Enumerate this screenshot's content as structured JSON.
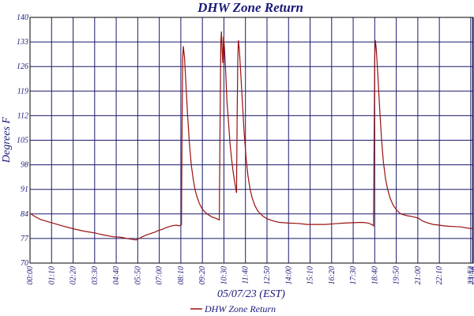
{
  "chart_data": {
    "type": "line",
    "title": "DHW Zone Return",
    "xlabel": "05/07/23 (EST)",
    "ylabel": "Degrees F",
    "ylim": [
      70,
      140
    ],
    "yticks": [
      70,
      77,
      84,
      91,
      98,
      105,
      112,
      119,
      126,
      133,
      140
    ],
    "xlim": [
      0,
      1440
    ],
    "xticks": [
      {
        "m": 0,
        "label": "00:00"
      },
      {
        "m": 70,
        "label": "01:10"
      },
      {
        "m": 140,
        "label": "02:20"
      },
      {
        "m": 210,
        "label": "03:30"
      },
      {
        "m": 280,
        "label": "04:40"
      },
      {
        "m": 350,
        "label": "05:50"
      },
      {
        "m": 420,
        "label": "07:00"
      },
      {
        "m": 490,
        "label": "08:10"
      },
      {
        "m": 560,
        "label": "09:20"
      },
      {
        "m": 630,
        "label": "10:30"
      },
      {
        "m": 700,
        "label": "11:40"
      },
      {
        "m": 770,
        "label": "12:50"
      },
      {
        "m": 840,
        "label": "14:00"
      },
      {
        "m": 910,
        "label": "15:10"
      },
      {
        "m": 980,
        "label": "16:20"
      },
      {
        "m": 1050,
        "label": "17:30"
      },
      {
        "m": 1120,
        "label": "18:40"
      },
      {
        "m": 1190,
        "label": "19:50"
      },
      {
        "m": 1260,
        "label": "21:00"
      },
      {
        "m": 1330,
        "label": "22:10"
      },
      {
        "m": 1432,
        "label": "23:52"
      },
      {
        "m": 1438,
        "label": "23:58"
      }
    ],
    "grid": true,
    "legend": "bottom-center",
    "series": [
      {
        "name": "DHW Zone Return",
        "color": "#9b1010",
        "points": [
          [
            0,
            84.2
          ],
          [
            15,
            83.3
          ],
          [
            35,
            82.4
          ],
          [
            70,
            81.5
          ],
          [
            105,
            80.6
          ],
          [
            140,
            79.8
          ],
          [
            175,
            79.1
          ],
          [
            210,
            78.6
          ],
          [
            240,
            78.0
          ],
          [
            270,
            77.5
          ],
          [
            290,
            77.4
          ],
          [
            300,
            77.3
          ],
          [
            310,
            77.1
          ],
          [
            320,
            76.9
          ],
          [
            330,
            76.8
          ],
          [
            345,
            76.6
          ],
          [
            355,
            77.0
          ],
          [
            365,
            77.5
          ],
          [
            375,
            77.9
          ],
          [
            385,
            78.2
          ],
          [
            395,
            78.5
          ],
          [
            405,
            78.8
          ],
          [
            415,
            79.2
          ],
          [
            430,
            79.6
          ],
          [
            445,
            80.2
          ],
          [
            460,
            80.6
          ],
          [
            475,
            80.8
          ],
          [
            485,
            80.6
          ],
          [
            492,
            80.9
          ],
          [
            494,
            110.0
          ],
          [
            496,
            128.0
          ],
          [
            498,
            131.8
          ],
          [
            502,
            128.5
          ],
          [
            506,
            122.0
          ],
          [
            512,
            112.0
          ],
          [
            518,
            104.0
          ],
          [
            524,
            98.0
          ],
          [
            530,
            94.0
          ],
          [
            536,
            91.0
          ],
          [
            542,
            89.0
          ],
          [
            550,
            87.0
          ],
          [
            560,
            85.3
          ],
          [
            575,
            84.0
          ],
          [
            590,
            83.2
          ],
          [
            605,
            82.7
          ],
          [
            615,
            82.3
          ],
          [
            617,
            105.0
          ],
          [
            620,
            133.0
          ],
          [
            622,
            136.0
          ],
          [
            624,
            131.0
          ],
          [
            626,
            127.0
          ],
          [
            629,
            134.5
          ],
          [
            632,
            131.0
          ],
          [
            636,
            124.0
          ],
          [
            640,
            116.0
          ],
          [
            645,
            110.0
          ],
          [
            650,
            104.0
          ],
          [
            655,
            99.5
          ],
          [
            660,
            96.0
          ],
          [
            665,
            93.0
          ],
          [
            668,
            91.5
          ],
          [
            671,
            90.0
          ],
          [
            673,
            112.0
          ],
          [
            675,
            128.0
          ],
          [
            677,
            133.5
          ],
          [
            680,
            131.0
          ],
          [
            684,
            125.0
          ],
          [
            690,
            116.0
          ],
          [
            696,
            107.0
          ],
          [
            702,
            100.0
          ],
          [
            708,
            95.0
          ],
          [
            715,
            91.0
          ],
          [
            722,
            88.5
          ],
          [
            730,
            86.5
          ],
          [
            740,
            84.8
          ],
          [
            755,
            83.5
          ],
          [
            770,
            82.6
          ],
          [
            790,
            82.0
          ],
          [
            810,
            81.6
          ],
          [
            840,
            81.4
          ],
          [
            870,
            81.3
          ],
          [
            900,
            81.0
          ],
          [
            930,
            81.0
          ],
          [
            960,
            81.0
          ],
          [
            990,
            81.2
          ],
          [
            1020,
            81.4
          ],
          [
            1050,
            81.5
          ],
          [
            1080,
            81.6
          ],
          [
            1100,
            81.4
          ],
          [
            1112,
            80.9
          ],
          [
            1116,
            80.6
          ],
          [
            1118,
            106.0
          ],
          [
            1120,
            128.0
          ],
          [
            1122,
            133.5
          ],
          [
            1125,
            131.0
          ],
          [
            1130,
            124.0
          ],
          [
            1136,
            114.0
          ],
          [
            1142,
            105.5
          ],
          [
            1148,
            99.0
          ],
          [
            1155,
            94.0
          ],
          [
            1162,
            91.0
          ],
          [
            1170,
            88.5
          ],
          [
            1180,
            86.5
          ],
          [
            1192,
            85.0
          ],
          [
            1205,
            84.0
          ],
          [
            1225,
            83.5
          ],
          [
            1245,
            83.2
          ],
          [
            1262,
            82.8
          ],
          [
            1275,
            82.0
          ],
          [
            1290,
            81.5
          ],
          [
            1310,
            81.0
          ],
          [
            1330,
            80.8
          ],
          [
            1345,
            80.6
          ],
          [
            1360,
            80.5
          ],
          [
            1380,
            80.4
          ],
          [
            1400,
            80.3
          ],
          [
            1420,
            80.0
          ],
          [
            1438,
            79.8
          ]
        ]
      }
    ]
  }
}
